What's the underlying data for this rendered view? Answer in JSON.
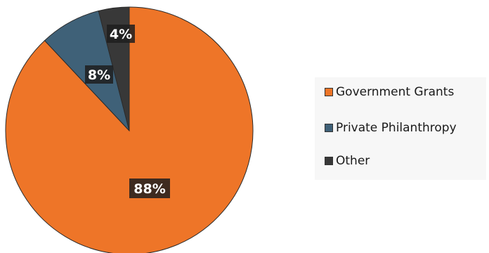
{
  "chart_data": {
    "type": "pie",
    "slices": [
      {
        "name": "Government Grants",
        "value": 88,
        "label": "88%",
        "color": "#ee7528"
      },
      {
        "name": "Private Philanthropy",
        "value": 8,
        "label": "8%",
        "color": "#3f6178"
      },
      {
        "name": "Other",
        "value": 4,
        "label": "4%",
        "color": "#383838"
      }
    ],
    "legend_position": "right",
    "title": ""
  }
}
